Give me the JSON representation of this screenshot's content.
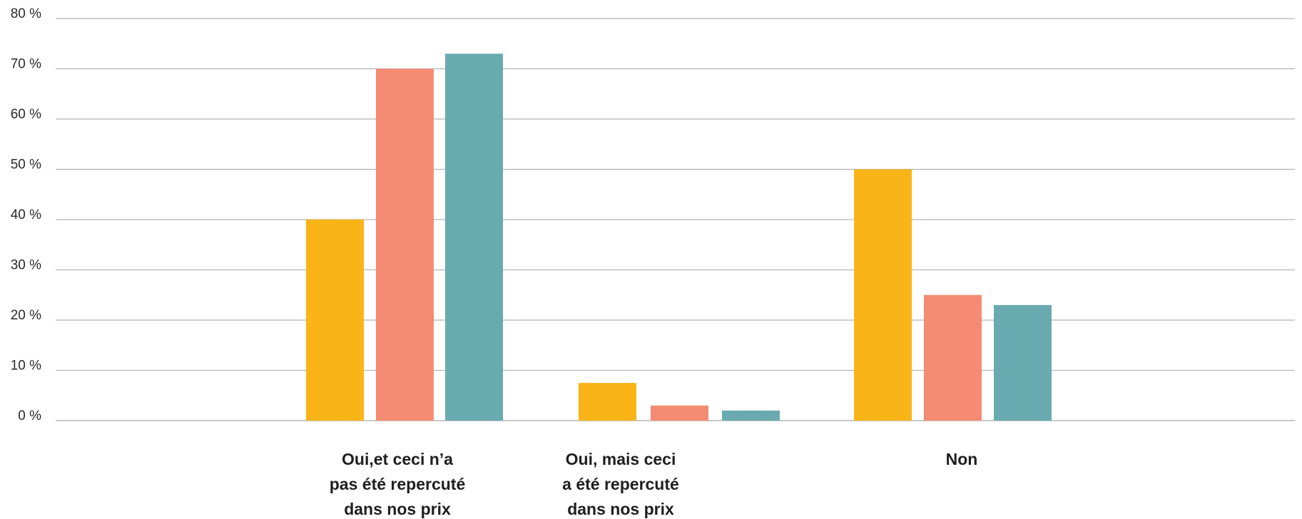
{
  "chart_data": {
    "type": "bar",
    "title": "",
    "xlabel": "",
    "ylabel": "",
    "ylim": [
      0,
      80
    ],
    "y_ticks": [
      "0 %",
      "10 %",
      "20 %",
      "30 %",
      "40 %",
      "50 %",
      "60 %",
      "70 %",
      "80 %"
    ],
    "grid": true,
    "legend": "none",
    "categories": [
      [
        "Oui,et ceci n’a",
        "pas été repercuté",
        "dans nos prix"
      ],
      [
        "Oui, mais ceci",
        "a été repercuté",
        "dans nos prix"
      ],
      [
        "Non"
      ]
    ],
    "series": [
      {
        "color": "#F9B418",
        "values": [
          40,
          7.5,
          50
        ]
      },
      {
        "color": "#F58B72",
        "values": [
          70,
          3,
          25
        ]
      },
      {
        "color": "#69AAB0",
        "values": [
          73,
          2,
          23
        ]
      }
    ],
    "colors": {
      "grid": "#b5b5b5",
      "axis_text": "#2a2a2a",
      "category_text": "#1f1f1f"
    }
  }
}
